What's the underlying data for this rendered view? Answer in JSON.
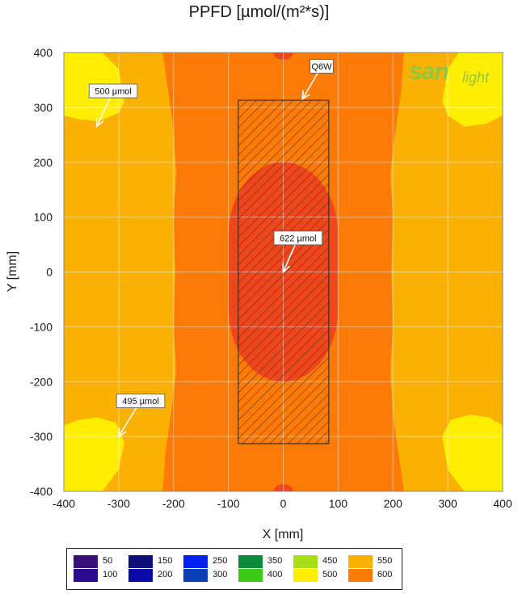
{
  "title": "PPFD [µmol/(m²*s)]",
  "logo": {
    "part1": "san",
    "part2": "light"
  },
  "chart_data": {
    "type": "heatmap",
    "title": "PPFD [µmol/(m²*s)]",
    "xlabel": "X [mm]",
    "ylabel": "Y [mm]",
    "xlim": [
      -400,
      400
    ],
    "ylim": [
      -400,
      400
    ],
    "xticks": [
      -400,
      -300,
      -200,
      -100,
      0,
      100,
      200,
      300,
      400
    ],
    "yticks": [
      400,
      300,
      200,
      100,
      0,
      -100,
      -200,
      -300,
      -400
    ],
    "grid": true,
    "min_value": 495,
    "max_value": 622,
    "fixture": {
      "label": "Q6W",
      "x": [
        -82,
        83
      ],
      "y": [
        -313,
        313
      ]
    },
    "annotations": [
      {
        "text": "500 µmol",
        "point": [
          -340,
          265
        ],
        "label_at": [
          -310,
          330
        ]
      },
      {
        "text": "622 µmol",
        "point": [
          0,
          0
        ],
        "label_at": [
          27,
          62
        ]
      },
      {
        "text": "495 µmol",
        "point": [
          -300,
          -300
        ],
        "label_at": [
          -260,
          -235
        ]
      },
      {
        "text": "Q6W",
        "point": [
          35,
          315
        ],
        "label_at": [
          70,
          375
        ]
      }
    ],
    "legend": {
      "placement": "bottom",
      "entries": [
        {
          "top": "50",
          "bottom": "100",
          "colors": [
            "#3b0f7a",
            "#2a0a90"
          ]
        },
        {
          "top": "150",
          "bottom": "200",
          "colors": [
            "#0c0f7a",
            "#0a0aa8"
          ]
        },
        {
          "top": "250",
          "bottom": "300",
          "colors": [
            "#0020f0",
            "#0a3fb8"
          ]
        },
        {
          "top": "350",
          "bottom": "400",
          "colors": [
            "#0d8a3a",
            "#3ecb18"
          ]
        },
        {
          "top": "450",
          "bottom": "500",
          "colors": [
            "#a8e018",
            "#ffee00"
          ]
        },
        {
          "top": "550",
          "bottom": "600",
          "colors": [
            "#fbb104",
            "#fc7a06"
          ]
        }
      ]
    },
    "zone_colors": {
      "500-550": "#ffee00",
      "550-600": "#fbb104",
      "600-610": "#fc7a06",
      "610+": "#f0461c"
    }
  }
}
